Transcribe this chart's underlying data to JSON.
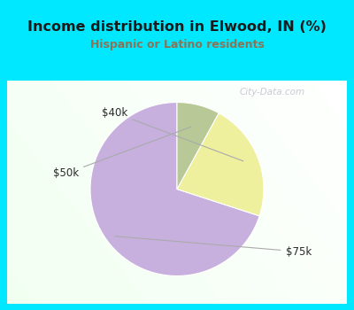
{
  "title": "Income distribution in Elwood, IN (%)",
  "subtitle": "Hispanic or Latino residents",
  "title_color": "#1a1a1a",
  "subtitle_color": "#8b7355",
  "bg_color": "#00e8ff",
  "panel_color": "#ffffff",
  "slices": [
    {
      "label": "$75k",
      "value": 70,
      "color": "#c8b0de"
    },
    {
      "label": "$40k",
      "value": 22,
      "color": "#eef09e"
    },
    {
      "label": "$50k",
      "value": 8,
      "color": "#b8c896"
    }
  ],
  "start_angle": 90,
  "watermark": "City-Data.com",
  "watermark_color": "#b8b8c8",
  "label_color": "#2a2a2a",
  "line_color": "#aaaaaa"
}
